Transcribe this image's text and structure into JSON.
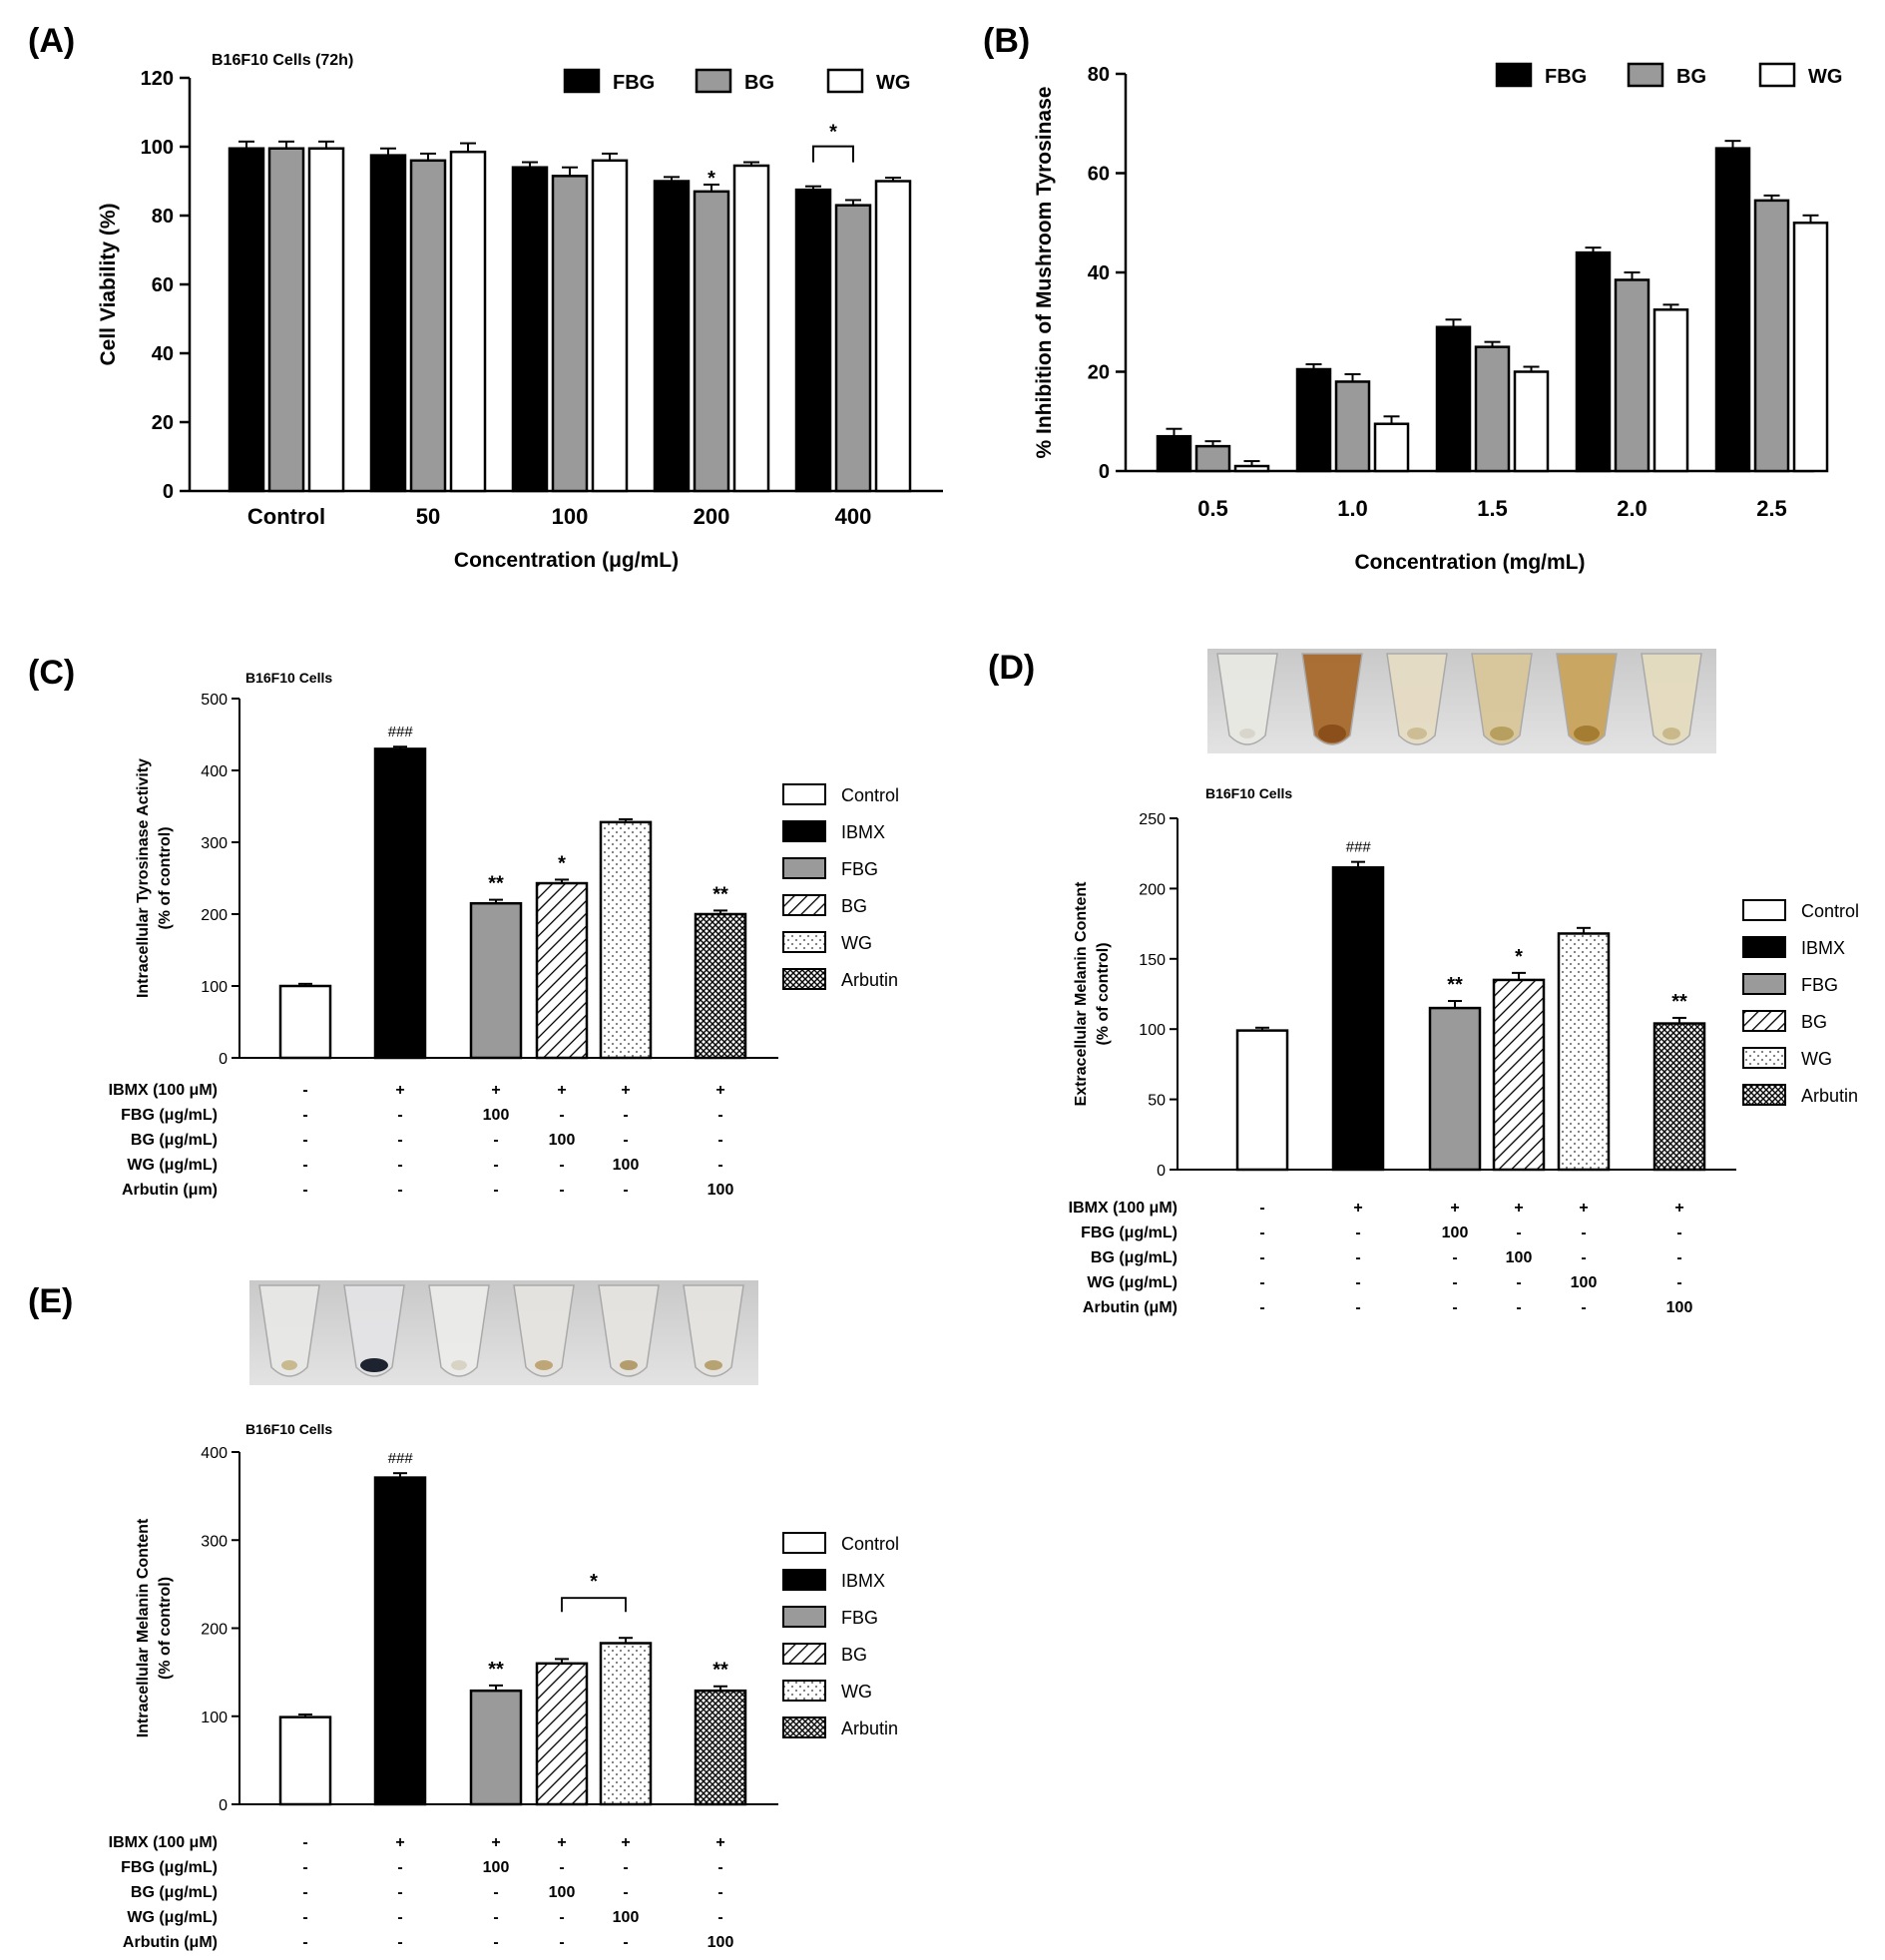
{
  "colors": {
    "FBG": "#000000",
    "BG": "#9a9a9a",
    "WG": "#ffffff",
    "Control": "#ffffff",
    "IBMX": "#000000",
    "FBG_cells": "#9a9a9a"
  },
  "chart_data": [
    {
      "id": "A",
      "type": "bar",
      "panel_label": "(A)",
      "title": "B16F10 Cells (72h)",
      "xlabel": "Concentration (μg/mL)",
      "ylabel": "Cell Viability (%)",
      "ylim": [
        0,
        120
      ],
      "yticks": [
        0,
        20,
        40,
        60,
        80,
        100,
        120
      ],
      "categories": [
        "Control",
        "50",
        "100",
        "200",
        "400"
      ],
      "series": [
        {
          "name": "FBG",
          "values": [
            99.5,
            97.5,
            94,
            90,
            87.5
          ],
          "errors": [
            2,
            2,
            1.5,
            1.2,
            1
          ]
        },
        {
          "name": "BG",
          "values": [
            99.5,
            96,
            91.5,
            87,
            83
          ],
          "errors": [
            2,
            2,
            2.5,
            2,
            1.5
          ]
        },
        {
          "name": "WG",
          "values": [
            99.5,
            98.5,
            96,
            94.5,
            90
          ],
          "errors": [
            2,
            2.5,
            2,
            1,
            1
          ]
        }
      ],
      "annotations": [
        {
          "text": "*",
          "category": "200",
          "series": "BG"
        },
        {
          "text": "*",
          "category": "400",
          "bracket": [
            "FBG",
            "BG"
          ]
        }
      ],
      "legend": [
        "FBG",
        "BG",
        "WG"
      ]
    },
    {
      "id": "B",
      "type": "bar",
      "panel_label": "(B)",
      "title": "",
      "xlabel": "Concentration (mg/mL)",
      "ylabel": "% Inhibition of Mushroom Tyrosinase",
      "ylim": [
        0,
        80
      ],
      "yticks": [
        0,
        20,
        40,
        60,
        80
      ],
      "categories": [
        "0.5",
        "1.0",
        "1.5",
        "2.0",
        "2.5"
      ],
      "series": [
        {
          "name": "FBG",
          "values": [
            7,
            20.5,
            29,
            44,
            65
          ],
          "errors": [
            1.5,
            1,
            1.5,
            1,
            1.5
          ]
        },
        {
          "name": "BG",
          "values": [
            5,
            18,
            25,
            38.5,
            54.5
          ],
          "errors": [
            1,
            1.5,
            1,
            1.5,
            1
          ]
        },
        {
          "name": "WG",
          "values": [
            1,
            9.5,
            20,
            32.5,
            50
          ],
          "errors": [
            1,
            1.5,
            1,
            1,
            1.5
          ]
        }
      ],
      "legend": [
        "FBG",
        "BG",
        "WG"
      ]
    },
    {
      "id": "C",
      "type": "bar",
      "panel_label": "(C)",
      "title": "B16F10 Cells",
      "ylabel_lines": [
        "Intracellular Tyrosinase Activity",
        "(% of control)"
      ],
      "ylim": [
        0,
        500
      ],
      "yticks": [
        0,
        100,
        200,
        300,
        400,
        500
      ],
      "groups": [
        "Control",
        "IBMX",
        "FBG",
        "BG",
        "WG",
        "Arbutin"
      ],
      "values": [
        100,
        430,
        215,
        243,
        328,
        200
      ],
      "errors": [
        3,
        3,
        5,
        5,
        4,
        5
      ],
      "annotations": [
        "",
        "###",
        "**",
        "*",
        "",
        "**"
      ],
      "legend": [
        "Control",
        "IBMX",
        "FBG",
        "BG",
        "WG",
        "Arbutin"
      ],
      "treatment_table": {
        "rows": [
          "IBMX (100 μM)",
          "FBG (μg/mL)",
          "BG (μg/mL)",
          "WG (μg/mL)",
          "Arbutin (μm)"
        ],
        "cells": [
          [
            "-",
            "+",
            "+",
            "+",
            "+",
            "+"
          ],
          [
            "-",
            "-",
            "100",
            "-",
            "-",
            "-"
          ],
          [
            "-",
            "-",
            "-",
            "100",
            "-",
            "-"
          ],
          [
            "-",
            "-",
            "-",
            "-",
            "100",
            "-"
          ],
          [
            "-",
            "-",
            "-",
            "-",
            "-",
            "100"
          ]
        ]
      }
    },
    {
      "id": "D",
      "type": "bar",
      "panel_label": "(D)",
      "title": "B16F10 Cells",
      "ylabel_lines": [
        "Extracellular Melanin Content",
        "(% of control)"
      ],
      "ylim": [
        0,
        250
      ],
      "yticks": [
        0,
        50,
        100,
        150,
        200,
        250
      ],
      "groups": [
        "Control",
        "IBMX",
        "FBG",
        "BG",
        "WG",
        "Arbutin"
      ],
      "values": [
        99,
        215,
        115,
        135,
        168,
        104
      ],
      "errors": [
        2,
        4,
        5,
        5,
        4,
        4
      ],
      "annotations": [
        "",
        "###",
        "**",
        "*",
        "",
        "**"
      ],
      "legend": [
        "Control",
        "IBMX",
        "FBG",
        "BG",
        "WG",
        "Arbutin"
      ],
      "treatment_table": {
        "rows": [
          "IBMX (100 μM)",
          "FBG (μg/mL)",
          "BG (μg/mL)",
          "WG (μg/mL)",
          "Arbutin (μM)"
        ],
        "cells": [
          [
            "-",
            "+",
            "+",
            "+",
            "+",
            "+"
          ],
          [
            "-",
            "-",
            "100",
            "-",
            "-",
            "-"
          ],
          [
            "-",
            "-",
            "-",
            "100",
            "-",
            "-"
          ],
          [
            "-",
            "-",
            "-",
            "-",
            "100",
            "-"
          ],
          [
            "-",
            "-",
            "-",
            "-",
            "-",
            "100"
          ]
        ]
      }
    },
    {
      "id": "E",
      "type": "bar",
      "panel_label": "(E)",
      "title": "B16F10 Cells",
      "ylabel_lines": [
        "Intracellular Melanin Content",
        "(% of control)"
      ],
      "ylim": [
        0,
        400
      ],
      "yticks": [
        0,
        100,
        200,
        300,
        400
      ],
      "groups": [
        "Control",
        "IBMX",
        "FBG",
        "BG",
        "WG",
        "Arbutin"
      ],
      "values": [
        99,
        371,
        129,
        160,
        183,
        129
      ],
      "errors": [
        3,
        5,
        6,
        5,
        6,
        5
      ],
      "annotations": [
        "",
        "###",
        "**",
        "",
        "",
        "**"
      ],
      "bracket_annotation": {
        "text": "*",
        "between": [
          "BG",
          "WG"
        ]
      },
      "legend": [
        "Control",
        "IBMX",
        "FBG",
        "BG",
        "WG",
        "Arbutin"
      ],
      "treatment_table": {
        "rows": [
          "IBMX (100 μM)",
          "FBG (μg/mL)",
          "BG (μg/mL)",
          "WG (μg/mL)",
          "Arbutin (μM)"
        ],
        "cells": [
          [
            "-",
            "+",
            "+",
            "+",
            "+",
            "+"
          ],
          [
            "-",
            "-",
            "100",
            "-",
            "-",
            "-"
          ],
          [
            "-",
            "-",
            "-",
            "100",
            "-",
            "-"
          ],
          [
            "-",
            "-",
            "-",
            "-",
            "100",
            "-"
          ],
          [
            "-",
            "-",
            "-",
            "-",
            "-",
            "100"
          ]
        ]
      }
    }
  ]
}
